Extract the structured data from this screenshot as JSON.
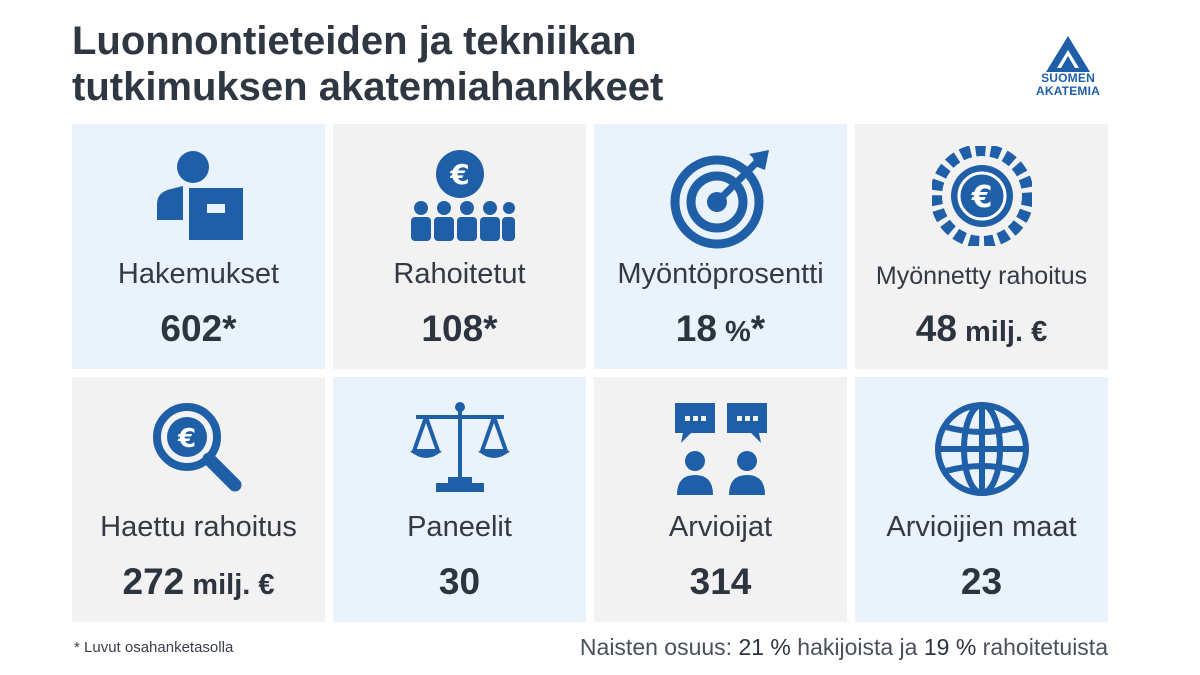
{
  "title": {
    "line1": "Luonnontieteiden ja tekniikan",
    "line2": "tutkimuksen akatemiahankkeet"
  },
  "logo": {
    "line1": "SUOMEN",
    "line2": "AKATEMIA"
  },
  "brand_color": "#1f5fa8",
  "cards": [
    {
      "icon": "applicant-person-icon",
      "label": "Hakemukset",
      "value": "602",
      "unit": "",
      "suffix": "*"
    },
    {
      "icon": "funded-group-euro-icon",
      "label": "Rahoitetut",
      "value": "108",
      "unit": "",
      "suffix": "*"
    },
    {
      "icon": "target-icon",
      "label": "Myöntöprosentti",
      "value": "18",
      "unit": " %",
      "suffix": "*"
    },
    {
      "icon": "euro-coin-icon",
      "label": "Myönnetty rahoitus",
      "value": "48",
      "unit": " milj. €",
      "suffix": ""
    },
    {
      "icon": "euro-magnifier-icon",
      "label": "Haettu rahoitus",
      "value": "272",
      "unit": " milj. €",
      "suffix": ""
    },
    {
      "icon": "scales-icon",
      "label": "Paneelit",
      "value": "30",
      "unit": "",
      "suffix": ""
    },
    {
      "icon": "reviewers-chat-icon",
      "label": "Arvioijat",
      "value": "314",
      "unit": "",
      "suffix": ""
    },
    {
      "icon": "globe-icon",
      "label": "Arvioijien maat",
      "value": "23",
      "unit": "",
      "suffix": ""
    }
  ],
  "footnote": "* Luvut osahanketasolla",
  "women_share": {
    "prefix": "Naisten osuus: ",
    "applicants_value": "21 %",
    "applicants_text": " hakijoista ja ",
    "funded_value": "19 %",
    "funded_text": " rahoitetuista"
  }
}
